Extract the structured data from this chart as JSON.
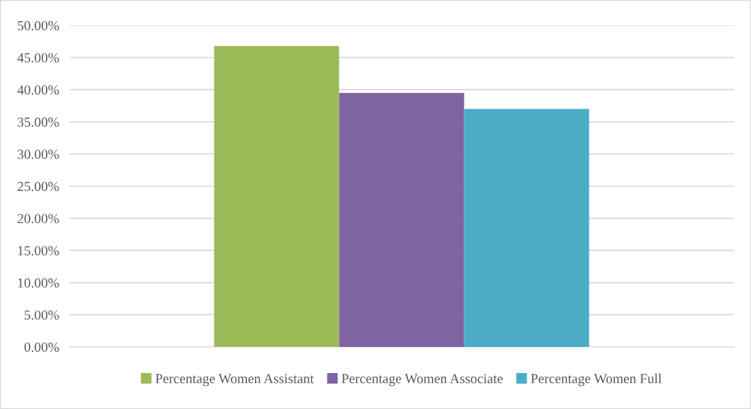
{
  "chart_data": {
    "type": "bar",
    "categories": [
      null
    ],
    "series": [
      {
        "name": "Percentage Women Assistant",
        "color": "#9bbb59",
        "values": [
          46.8
        ]
      },
      {
        "name": "Percentage Women Associate",
        "color": "#8064a2",
        "values": [
          39.5
        ]
      },
      {
        "name": "Percentage Women Full",
        "color": "#4bacc6",
        "values": [
          37.0
        ]
      }
    ],
    "ylim": [
      0,
      50
    ],
    "yticks": [
      {
        "value": 0,
        "label": "0.00%"
      },
      {
        "value": 5,
        "label": "5.00%"
      },
      {
        "value": 10,
        "label": "10.00%"
      },
      {
        "value": 15,
        "label": "15.00%"
      },
      {
        "value": 20,
        "label": "20.00%"
      },
      {
        "value": 25,
        "label": "25.00%"
      },
      {
        "value": 30,
        "label": "30.00%"
      },
      {
        "value": 35,
        "label": "35.00%"
      },
      {
        "value": 40,
        "label": "40.00%"
      },
      {
        "value": 45,
        "label": "45.00%"
      },
      {
        "value": 50,
        "label": "50.00%"
      }
    ],
    "grid": "y",
    "legend": "bottom"
  }
}
